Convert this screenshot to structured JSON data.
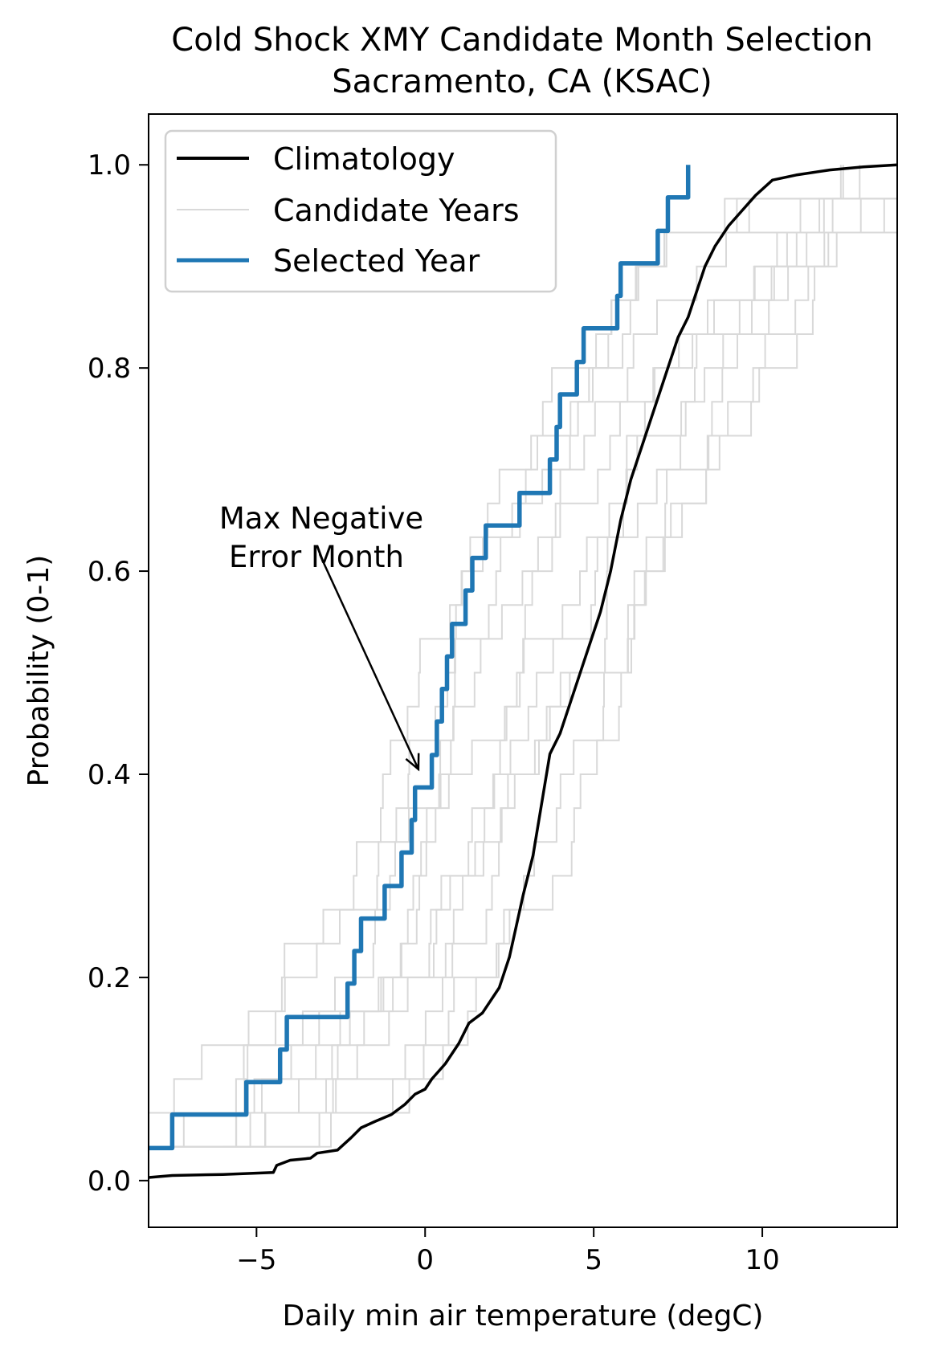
{
  "chart_data": {
    "type": "line",
    "title": "Cold Shock XMY Candidate Month Selection",
    "subtitle": "Sacramento, CA (KSAC)",
    "xlabel": "Daily min air temperature (degC)",
    "ylabel": "Probability (0-1)",
    "xlim": [
      -8.2,
      14.0
    ],
    "ylim": [
      -0.046,
      1.05
    ],
    "xticks": [
      -5,
      0,
      5,
      10
    ],
    "xtick_labels": [
      "−5",
      "0",
      "5",
      "10"
    ],
    "yticks": [
      0.0,
      0.2,
      0.4,
      0.6,
      0.8,
      1.0
    ],
    "ytick_labels": [
      "0.0",
      "0.2",
      "0.4",
      "0.6",
      "0.8",
      "1.0"
    ],
    "grid": false,
    "legend": {
      "placement": "top-left",
      "entries": [
        {
          "label": "Climatology",
          "color": "#000000"
        },
        {
          "label": "Candidate Years",
          "color": "#d9d9d9"
        },
        {
          "label": "Selected Year",
          "color": "#1f77b4"
        }
      ]
    },
    "annotation": {
      "line1": "Max Negative",
      "line2": "Error Month",
      "text_at": [
        -3.2,
        0.6
      ],
      "arrow_to": [
        -0.2,
        0.405
      ]
    },
    "series": [
      {
        "name": "Climatology",
        "color": "#000000",
        "step": false,
        "points": [
          [
            -8.2,
            0.003
          ],
          [
            -7.5,
            0.005
          ],
          [
            -6.0,
            0.006
          ],
          [
            -4.5,
            0.008
          ],
          [
            -4.4,
            0.015
          ],
          [
            -4.0,
            0.02
          ],
          [
            -3.4,
            0.022
          ],
          [
            -3.2,
            0.027
          ],
          [
            -2.6,
            0.03
          ],
          [
            -2.2,
            0.042
          ],
          [
            -1.9,
            0.052
          ],
          [
            -1.5,
            0.058
          ],
          [
            -1.0,
            0.065
          ],
          [
            -0.6,
            0.075
          ],
          [
            -0.3,
            0.085
          ],
          [
            0.0,
            0.09
          ],
          [
            0.2,
            0.1
          ],
          [
            0.6,
            0.115
          ],
          [
            1.0,
            0.135
          ],
          [
            1.3,
            0.155
          ],
          [
            1.7,
            0.165
          ],
          [
            2.2,
            0.19
          ],
          [
            2.5,
            0.22
          ],
          [
            2.7,
            0.25
          ],
          [
            2.9,
            0.28
          ],
          [
            3.2,
            0.32
          ],
          [
            3.5,
            0.38
          ],
          [
            3.7,
            0.42
          ],
          [
            4.0,
            0.44
          ],
          [
            4.3,
            0.47
          ],
          [
            4.6,
            0.5
          ],
          [
            4.9,
            0.53
          ],
          [
            5.2,
            0.56
          ],
          [
            5.5,
            0.6
          ],
          [
            5.8,
            0.65
          ],
          [
            6.1,
            0.69
          ],
          [
            6.5,
            0.73
          ],
          [
            6.9,
            0.77
          ],
          [
            7.2,
            0.8
          ],
          [
            7.5,
            0.83
          ],
          [
            7.8,
            0.85
          ],
          [
            8.0,
            0.87
          ],
          [
            8.3,
            0.9
          ],
          [
            8.6,
            0.92
          ],
          [
            9.0,
            0.94
          ],
          [
            9.4,
            0.955
          ],
          [
            9.8,
            0.97
          ],
          [
            10.3,
            0.985
          ],
          [
            11.0,
            0.99
          ],
          [
            12.0,
            0.995
          ],
          [
            13.0,
            0.998
          ],
          [
            14.0,
            1.0
          ]
        ]
      },
      {
        "name": "Selected Year",
        "color": "#1f77b4",
        "step": true,
        "points": [
          [
            -8.2,
            0.032
          ],
          [
            -7.5,
            0.065
          ],
          [
            -5.3,
            0.097
          ],
          [
            -4.3,
            0.129
          ],
          [
            -4.1,
            0.161
          ],
          [
            -2.3,
            0.194
          ],
          [
            -2.1,
            0.226
          ],
          [
            -1.9,
            0.258
          ],
          [
            -1.2,
            0.29
          ],
          [
            -0.7,
            0.323
          ],
          [
            -0.4,
            0.355
          ],
          [
            -0.3,
            0.387
          ],
          [
            0.2,
            0.419
          ],
          [
            0.35,
            0.452
          ],
          [
            0.5,
            0.484
          ],
          [
            0.65,
            0.516
          ],
          [
            0.8,
            0.548
          ],
          [
            1.2,
            0.581
          ],
          [
            1.4,
            0.613
          ],
          [
            1.8,
            0.645
          ],
          [
            2.8,
            0.677
          ],
          [
            3.7,
            0.71
          ],
          [
            3.9,
            0.742
          ],
          [
            4.0,
            0.774
          ],
          [
            4.5,
            0.806
          ],
          [
            4.7,
            0.839
          ],
          [
            5.7,
            0.871
          ],
          [
            5.8,
            0.903
          ],
          [
            6.9,
            0.935
          ],
          [
            7.2,
            0.968
          ],
          [
            7.8,
            1.0
          ]
        ]
      }
    ]
  }
}
